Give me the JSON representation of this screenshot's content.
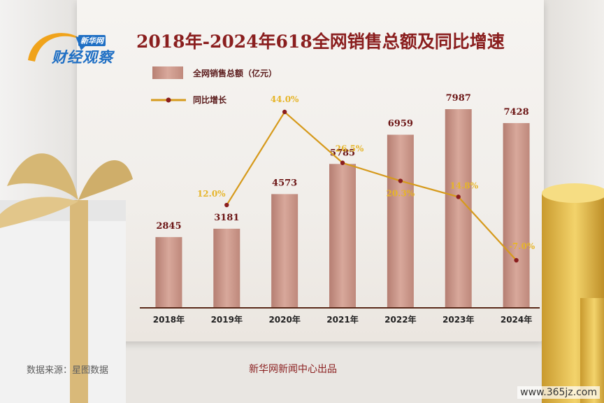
{
  "logo": {
    "badge": "新华网",
    "name": "财经观察"
  },
  "title": "2018年-2024年618全网销售总额及同比增速",
  "legend": {
    "bars": "全网销售总额（亿元）",
    "line": "同比增长"
  },
  "footer": {
    "source": "数据来源：星图数据",
    "credit": "新华网新闻中心出品"
  },
  "watermark": "www.365jz.com",
  "colors": {
    "bar": "#c38c80",
    "line": "#d69a1c",
    "marker": "#8a1e1e",
    "value_label": "#6b1414",
    "growth_label": "#e6b52a"
  },
  "chart_data": {
    "type": "bar",
    "title": "2018年-2024年618全网销售总额及同比增速",
    "categories": [
      "2018年",
      "2019年",
      "2020年",
      "2021年",
      "2022年",
      "2023年",
      "2024年"
    ],
    "series": [
      {
        "name": "全网销售总额（亿元）",
        "type": "bar",
        "values": [
          2845,
          3181,
          4573,
          5785,
          6959,
          7987,
          7428
        ],
        "labels": [
          "2845",
          "3181",
          "4573",
          "5785",
          "6959",
          "7987",
          "7428"
        ]
      },
      {
        "name": "同比增长",
        "type": "line",
        "values": [
          null,
          12.0,
          44.0,
          26.5,
          20.3,
          14.8,
          -7.0
        ],
        "labels": [
          "",
          "12.0%",
          "44.0%",
          "26.5%",
          "20.3%",
          "14.8%",
          "-7.0%"
        ]
      }
    ],
    "bar_ylim": [
      0,
      9000
    ],
    "line_ylim": [
      -10,
      50
    ],
    "grid": false,
    "legend_position": "top-left"
  }
}
